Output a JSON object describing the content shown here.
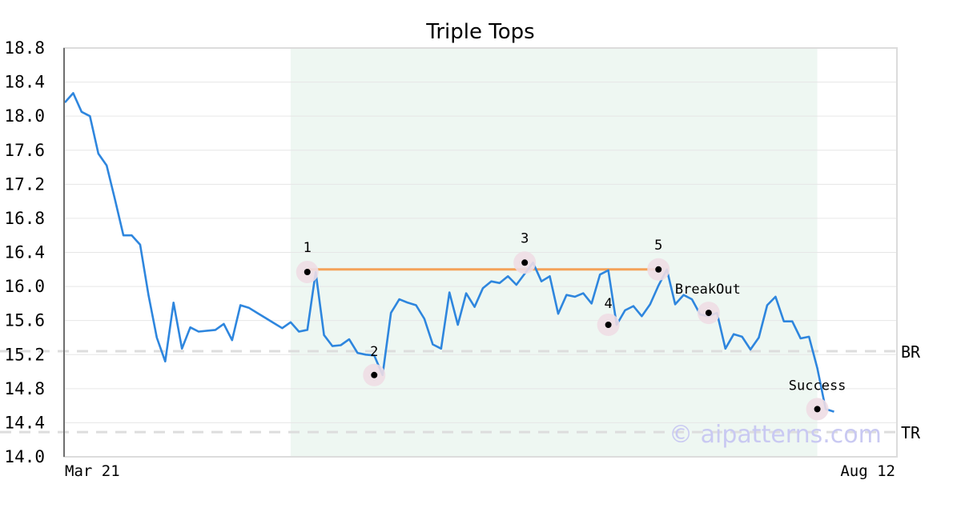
{
  "chart_data": {
    "type": "line",
    "title": "Triple Tops",
    "xlabel": "",
    "ylabel": "",
    "ylim": [
      14.0,
      18.8
    ],
    "yticks": [
      "18.8",
      "18.4",
      "18.0",
      "17.6",
      "17.2",
      "16.8",
      "16.4",
      "16.0",
      "15.6",
      "15.2",
      "14.8",
      "14.4",
      "14.0"
    ],
    "x_start_label": "Mar 21",
    "x_end_label": "Aug 12",
    "grid": true,
    "colors": {
      "price_line": "#2e86de",
      "top_line": "#f4a259",
      "pattern_band": "#eef7f2",
      "marker_halo": "#eedde4",
      "reference_line": "#dddddd"
    },
    "pattern_range": [
      27,
      90
    ],
    "series": [
      {
        "values": [
          18.16,
          18.27,
          18.05,
          18.0,
          17.56,
          17.42,
          17.02,
          16.6,
          16.6,
          16.49,
          15.9,
          15.4,
          15.12,
          15.81,
          15.27,
          15.52,
          15.47,
          15.48,
          15.49,
          15.56,
          15.37,
          15.78,
          15.75,
          15.69,
          15.63,
          15.57,
          15.51,
          15.58,
          15.47,
          15.49,
          16.17,
          15.43,
          15.3,
          15.31,
          15.38,
          15.22,
          15.2,
          15.19,
          14.96,
          15.69,
          15.85,
          15.81,
          15.78,
          15.62,
          15.32,
          15.27,
          15.93,
          15.55,
          15.92,
          15.76,
          15.98,
          16.06,
          16.04,
          16.12,
          16.02,
          16.15,
          16.28,
          16.06,
          16.12,
          15.68,
          15.9,
          15.88,
          15.92,
          15.8,
          16.14,
          16.19,
          15.55,
          15.72,
          15.77,
          15.65,
          15.79,
          16.01,
          16.2,
          15.79,
          15.9,
          15.85,
          15.67,
          15.65,
          15.69,
          15.27,
          15.44,
          15.41,
          15.26,
          15.4,
          15.78,
          15.88,
          15.59,
          15.59,
          15.39,
          15.41,
          15.04,
          14.56,
          14.53
        ]
      }
    ],
    "pattern_points": [
      {
        "label": "1",
        "index": 29,
        "value": 16.17
      },
      {
        "label": "2",
        "index": 37,
        "value": 14.96
      },
      {
        "label": "3",
        "index": 55,
        "value": 16.28
      },
      {
        "label": "4",
        "index": 65,
        "value": 15.55
      },
      {
        "label": "5",
        "index": 71,
        "value": 16.2
      },
      {
        "label": "BreakOut",
        "index": 77,
        "value": 15.69
      },
      {
        "label": "Success",
        "index": 90,
        "value": 14.56
      }
    ],
    "top_line": {
      "from_index": 29,
      "to_index": 71,
      "value": 16.2
    },
    "reference_lines": [
      {
        "label": "BR",
        "value": 15.24
      },
      {
        "label": "TR",
        "value": 14.29
      }
    ],
    "watermark": "© aipatterns.com"
  }
}
